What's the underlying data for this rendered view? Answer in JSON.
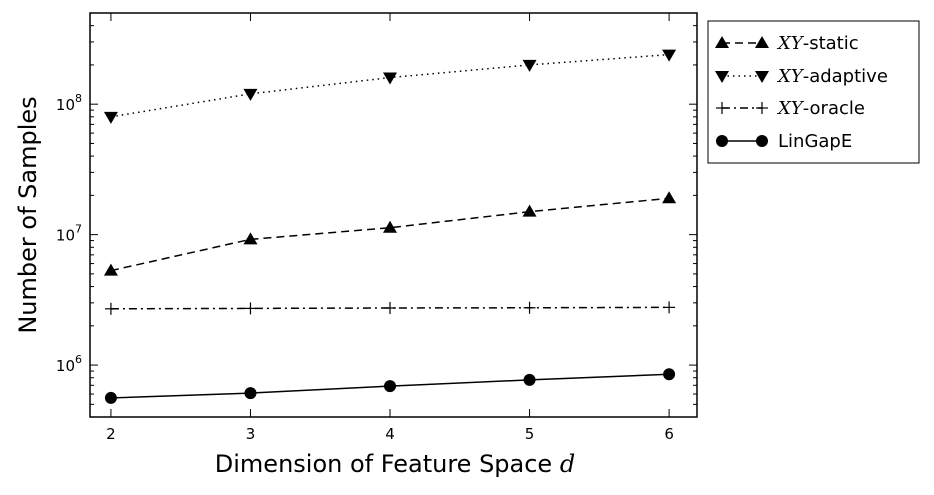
{
  "chart_data": {
    "type": "line",
    "title": "",
    "xlabel": "Dimension of Feature Space",
    "xlabel_var": "d",
    "ylabel": "Number of Samples",
    "x": [
      2,
      3,
      4,
      5,
      6
    ],
    "xlim": [
      1.85,
      6.2
    ],
    "xticks": [
      "2",
      "3",
      "4",
      "5",
      "6"
    ],
    "yscale": "log",
    "ylim": [
      400000,
      500000000
    ],
    "yticks": [
      {
        "value": 1000000,
        "base": "10",
        "exp": "6"
      },
      {
        "value": 10000000,
        "base": "10",
        "exp": "7"
      },
      {
        "value": 100000000,
        "base": "10",
        "exp": "8"
      }
    ],
    "grid": false,
    "legend_position": "outside-right-top",
    "series": [
      {
        "name_math": "XY",
        "name_suffix": "-static",
        "values": [
          5300000,
          9200000,
          11300000,
          15000000,
          19000000
        ],
        "line": "dashed",
        "marker": "triangle-up",
        "color": "#000000"
      },
      {
        "name_math": "XY",
        "name_suffix": "-adaptive",
        "values": [
          80000000,
          120000000,
          160000000,
          200000000,
          240000000
        ],
        "line": "dotted",
        "marker": "triangle-down",
        "color": "#000000"
      },
      {
        "name_math": "XY",
        "name_suffix": "-oracle",
        "values": [
          2700000,
          2720000,
          2740000,
          2750000,
          2770000
        ],
        "line": "dashdot",
        "marker": "plus",
        "color": "#000000"
      },
      {
        "name_math": "",
        "name_suffix": "LinGapE",
        "values": [
          560000,
          610000,
          690000,
          770000,
          850000
        ],
        "line": "solid",
        "marker": "circle",
        "color": "#000000"
      }
    ]
  }
}
